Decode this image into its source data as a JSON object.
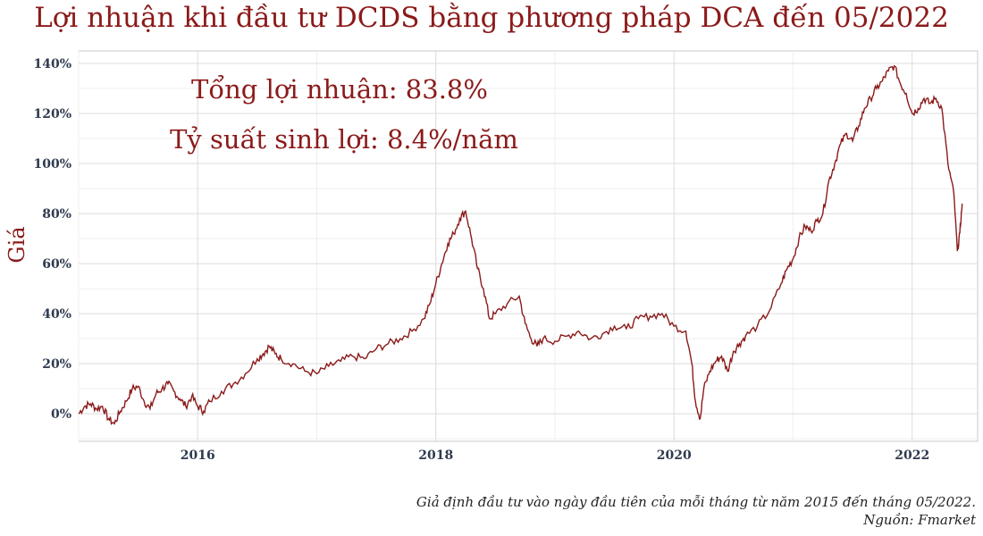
{
  "chart_data": {
    "type": "line",
    "title": "Lợi nhuận khi đầu tư DCDS bằng phương pháp DCA đến 05/2022",
    "ylabel": "Giá",
    "xlabel": "",
    "x_ticks": [
      "2016",
      "2018",
      "2020",
      "2022"
    ],
    "y_ticks": [
      "0%",
      "20%",
      "40%",
      "60%",
      "80%",
      "100%",
      "120%",
      "140%"
    ],
    "xlim": [
      2015.0,
      2022.55
    ],
    "ylim": [
      -11,
      145
    ],
    "grid": true,
    "line_color": "#8b1a1a",
    "annotations": [
      "Tổng lợi nhuận: 83.8%",
      "Tỷ suất sinh lợi: 8.4%/năm"
    ],
    "series": [
      {
        "x": [
          2015.0,
          2015.05,
          2015.1,
          2015.15,
          2015.2,
          2015.25,
          2015.3,
          2015.35,
          2015.4,
          2015.45,
          2015.5,
          2015.55,
          2015.6,
          2015.65,
          2015.7,
          2015.75,
          2015.8,
          2015.85,
          2015.9,
          2015.95,
          2016.0,
          2016.05,
          2016.1,
          2016.2,
          2016.3,
          2016.4,
          2016.5,
          2016.55,
          2016.6,
          2016.65,
          2016.7,
          2016.8,
          2016.9,
          2017.0,
          2017.1,
          2017.2,
          2017.3,
          2017.4,
          2017.5,
          2017.6,
          2017.7,
          2017.8,
          2017.9,
          2017.95,
          2018.0,
          2018.05,
          2018.1,
          2018.15,
          2018.2,
          2018.25,
          2018.3,
          2018.35,
          2018.4,
          2018.45,
          2018.5,
          2018.6,
          2018.7,
          2018.75,
          2018.8,
          2018.85,
          2018.9,
          2019.0,
          2019.1,
          2019.2,
          2019.3,
          2019.4,
          2019.5,
          2019.6,
          2019.7,
          2019.8,
          2019.9,
          2020.0,
          2020.1,
          2020.15,
          2020.18,
          2020.22,
          2020.25,
          2020.3,
          2020.35,
          2020.4,
          2020.45,
          2020.5,
          2020.55,
          2020.6,
          2020.7,
          2020.8,
          2020.9,
          2020.95,
          2021.0,
          2021.05,
          2021.1,
          2021.15,
          2021.2,
          2021.25,
          2021.3,
          2021.35,
          2021.4,
          2021.45,
          2021.5,
          2021.55,
          2021.6,
          2021.65,
          2021.7,
          2021.75,
          2021.8,
          2021.85,
          2021.9,
          2021.95,
          2022.0,
          2022.05,
          2022.1,
          2022.15,
          2022.2,
          2022.25,
          2022.3,
          2022.35,
          2022.38,
          2022.4,
          2022.42
        ],
        "y": [
          0,
          3,
          4,
          2,
          3,
          -2,
          -4,
          1,
          5,
          10,
          11,
          5,
          2,
          8,
          10,
          12,
          9,
          6,
          3,
          7,
          3,
          1,
          5,
          9,
          12,
          16,
          22,
          24,
          27,
          24,
          22,
          20,
          17,
          16,
          19,
          21,
          23,
          22,
          26,
          28,
          30,
          33,
          38,
          44,
          52,
          60,
          68,
          72,
          78,
          81,
          70,
          58,
          50,
          38,
          40,
          44,
          47,
          36,
          30,
          27,
          30,
          29,
          31,
          33,
          30,
          32,
          35,
          34,
          38,
          39,
          40,
          35,
          33,
          20,
          5,
          -2,
          10,
          17,
          21,
          23,
          17,
          25,
          28,
          31,
          35,
          41,
          52,
          58,
          62,
          70,
          75,
          73,
          77,
          80,
          93,
          100,
          108,
          112,
          109,
          115,
          122,
          126,
          130,
          133,
          137,
          139,
          132,
          128,
          120,
          122,
          126,
          124,
          126,
          122,
          100,
          88,
          65,
          72,
          84
        ]
      }
    ]
  },
  "footer": {
    "note1": "Giả định đầu tư vào ngày đầu tiên của mỗi tháng từ năm 2015 đến tháng 05/2022.",
    "note2": "Nguồn: Fmarket"
  }
}
